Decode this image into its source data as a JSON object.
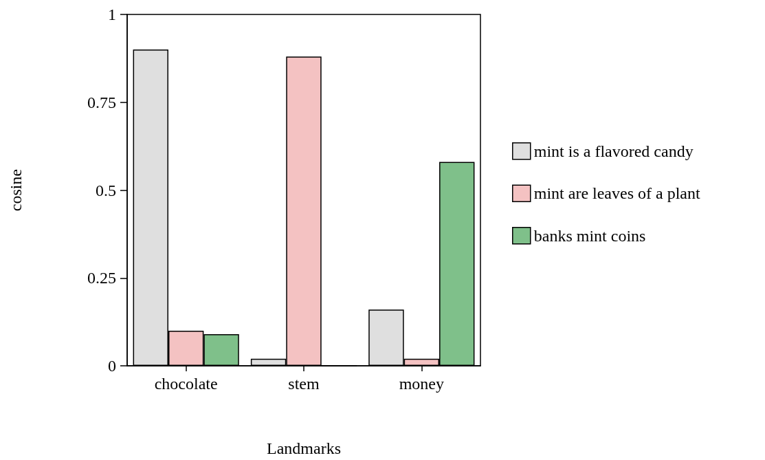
{
  "chart_data": {
    "type": "bar",
    "xlabel": "Landmarks",
    "ylabel": "cosine",
    "categories": [
      "chocolate",
      "stem",
      "money"
    ],
    "series": [
      {
        "name": "mint is a flavored candy",
        "color": "#dfdfdf",
        "values": [
          0.9,
          0.02,
          0.16
        ]
      },
      {
        "name": "mint are leaves of a plant",
        "color": "#f4c2c2",
        "values": [
          0.1,
          0.88,
          0.02
        ]
      },
      {
        "name": "banks mint coins",
        "color": "#7fc08a",
        "values": [
          0.09,
          0,
          0.58
        ]
      }
    ],
    "ylim": [
      0,
      1
    ],
    "yticks": [
      0,
      0.25,
      0.5,
      0.75,
      1
    ],
    "grid": false,
    "legend": "right"
  }
}
